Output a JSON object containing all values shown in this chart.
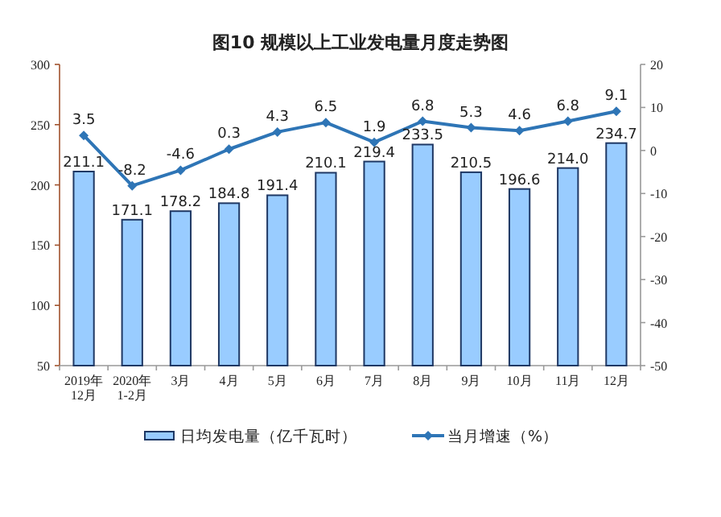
{
  "chart_data": {
    "type": "bar",
    "title": "图10 规模以上工业发电量月度走势图",
    "categories": [
      "2019年\n12月",
      "2020年\n1-2月",
      "3月",
      "4月",
      "5月",
      "6月",
      "7月",
      "8月",
      "9月",
      "10月",
      "11月",
      "12月"
    ],
    "series": [
      {
        "name": "日均发电量（亿千瓦时）",
        "color": "#99ccff",
        "values": [
          211.1,
          171.1,
          178.2,
          184.8,
          191.4,
          210.1,
          219.4,
          233.5,
          210.5,
          196.6,
          214.0,
          234.7
        ],
        "value_labels": [
          "211.1",
          "171.1",
          "178.2",
          "184.8",
          "191.4",
          "210.1",
          "219.4",
          "233.5",
          "210.5",
          "196.6",
          "214.0",
          "234.7"
        ]
      },
      {
        "name": "当月增速（%）",
        "type": "line",
        "axis": "y2",
        "color": "#2e75b6",
        "marker": "diamond",
        "values": [
          3.5,
          -8.2,
          -4.6,
          0.3,
          4.3,
          6.5,
          1.9,
          6.8,
          5.3,
          4.6,
          6.8,
          9.1
        ],
        "value_labels": [
          "3.5",
          "-8.2",
          "-4.6",
          "0.3",
          "4.3",
          "6.5",
          "1.9",
          "6.8",
          "5.3",
          "4.6",
          "6.8",
          "9.1"
        ]
      }
    ],
    "ylim": [
      50,
      300
    ],
    "yticks": [
      50,
      100,
      150,
      200,
      250,
      300
    ],
    "y2lim": [
      -50,
      20
    ],
    "y2ticks": [
      -50,
      -40,
      -30,
      -20,
      -10,
      0,
      10,
      20
    ],
    "legend": "bottom"
  }
}
